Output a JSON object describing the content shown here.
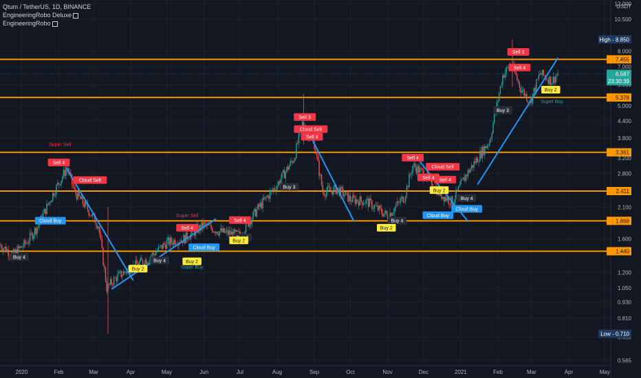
{
  "header": {
    "symbol_line": "Qtum / TetherUS, 1D, BINANCE",
    "indicator_1": "EngineeringRobo Deluxe",
    "indicator_2": "EngineeringRobo"
  },
  "chart_data": {
    "type": "candlestick",
    "symbol": "Qtum / TetherUS",
    "interval": "1D",
    "exchange": "BINANCE",
    "y_unit": "USDT",
    "y_scale": "log",
    "ylim": [
      0.54,
      12.4
    ],
    "x_range": [
      "2019-12-14",
      "2021-05-06"
    ],
    "x_ticks": [
      {
        "date": "2020-01-01",
        "label": "2020"
      },
      {
        "date": "2020-02-01",
        "label": "Feb"
      },
      {
        "date": "2020-03-01",
        "label": "Mar"
      },
      {
        "date": "2020-04-01",
        "label": "Apr"
      },
      {
        "date": "2020-05-01",
        "label": "May"
      },
      {
        "date": "2020-06-01",
        "label": "Jun"
      },
      {
        "date": "2020-07-01",
        "label": "Jul"
      },
      {
        "date": "2020-08-01",
        "label": "Aug"
      },
      {
        "date": "2020-09-01",
        "label": "Sep"
      },
      {
        "date": "2020-10-01",
        "label": "Oct"
      },
      {
        "date": "2020-11-01",
        "label": "Nov"
      },
      {
        "date": "2020-12-01",
        "label": "Dec"
      },
      {
        "date": "2021-01-01",
        "label": "2021"
      },
      {
        "date": "2021-02-01",
        "label": "Feb"
      },
      {
        "date": "2021-03-01",
        "label": "Mar"
      },
      {
        "date": "2021-04-01",
        "label": "Apr"
      },
      {
        "date": "2021-05-01",
        "label": "May"
      }
    ],
    "y_ticks": [
      "12.000",
      "10.500",
      "8.000",
      "7.000",
      "6.000",
      "5.000",
      "4.400",
      "3.800",
      "3.200",
      "2.800",
      "2.100",
      "1.600",
      "1.200",
      "1.050",
      "0.930",
      "0.810",
      "0.690",
      "0.565"
    ],
    "price_path": [
      [
        "2019-12-14",
        1.52
      ],
      [
        "2019-12-25",
        1.4
      ],
      [
        "2020-01-05",
        1.55
      ],
      [
        "2020-01-15",
        1.8
      ],
      [
        "2020-01-28",
        2.4
      ],
      [
        "2020-02-08",
        2.95
      ],
      [
        "2020-02-14",
        2.4
      ],
      [
        "2020-02-24",
        2.1
      ],
      [
        "2020-03-05",
        1.8
      ],
      [
        "2020-03-12",
        1.05
      ],
      [
        "2020-03-20",
        1.15
      ],
      [
        "2020-04-01",
        1.25
      ],
      [
        "2020-04-15",
        1.35
      ],
      [
        "2020-05-01",
        1.55
      ],
      [
        "2020-05-15",
        1.6
      ],
      [
        "2020-06-01",
        1.8
      ],
      [
        "2020-06-15",
        1.7
      ],
      [
        "2020-07-01",
        1.65
      ],
      [
        "2020-07-15",
        2.05
      ],
      [
        "2020-08-01",
        2.55
      ],
      [
        "2020-08-15",
        3.2
      ],
      [
        "2020-08-22",
        4.3
      ],
      [
        "2020-09-01",
        3.6
      ],
      [
        "2020-09-08",
        2.4
      ],
      [
        "2020-09-20",
        2.45
      ],
      [
        "2020-10-01",
        2.25
      ],
      [
        "2020-10-15",
        2.2
      ],
      [
        "2020-11-01",
        1.95
      ],
      [
        "2020-11-15",
        2.3
      ],
      [
        "2020-11-22",
        3.0
      ],
      [
        "2020-12-01",
        2.8
      ],
      [
        "2020-12-15",
        2.35
      ],
      [
        "2020-12-25",
        2.2
      ],
      [
        "2021-01-05",
        2.75
      ],
      [
        "2021-01-15",
        3.2
      ],
      [
        "2021-01-25",
        3.7
      ],
      [
        "2021-02-05",
        6.5
      ],
      [
        "2021-02-12",
        7.2
      ],
      [
        "2021-02-20",
        5.8
      ],
      [
        "2021-02-28",
        5.2
      ],
      [
        "2021-03-08",
        6.6
      ],
      [
        "2021-03-18",
        6.2
      ],
      [
        "2021-03-23",
        6.59
      ]
    ],
    "horizontal_levels": [
      7.455,
      5.378,
      3.361,
      2.411,
      1.868,
      1.44
    ],
    "trend_lines": [
      [
        [
          "2020-02-07",
          2.95
        ],
        [
          "2020-04-03",
          1.12
        ]
      ],
      [
        [
          "2020-03-16",
          1.04
        ],
        [
          "2020-06-11",
          1.9
        ]
      ],
      [
        [
          "2020-08-24",
          4.25
        ],
        [
          "2020-10-04",
          1.86
        ]
      ],
      [
        [
          "2020-11-28",
          3.1
        ],
        [
          "2021-01-07",
          1.86
        ]
      ],
      [
        [
          "2021-01-15",
          2.55
        ],
        [
          "2021-03-23",
          7.55
        ]
      ]
    ],
    "signals": [
      {
        "text": "Super Sell",
        "date": "2020-02-02",
        "price": 3.55,
        "kind": "text-sell"
      },
      {
        "text": "Sell 4",
        "date": "2020-02-01",
        "price": 3.08,
        "kind": "sell"
      },
      {
        "text": "Cloud Sell",
        "date": "2020-02-27",
        "price": 2.65,
        "kind": "sell"
      },
      {
        "text": "Cloud Buy",
        "date": "2020-01-25",
        "price": 1.87,
        "kind": "buy"
      },
      {
        "text": "Buy 4",
        "date": "2019-12-30",
        "price": 1.37,
        "kind": "buy-dark"
      },
      {
        "text": "Buy 2",
        "date": "2020-04-07",
        "price": 1.24,
        "kind": "buy-yellow"
      },
      {
        "text": "Buy 4",
        "date": "2020-04-25",
        "price": 1.33,
        "kind": "buy-dark"
      },
      {
        "text": "Super Sell",
        "date": "2020-05-18",
        "price": 1.93,
        "kind": "text-sell"
      },
      {
        "text": "Sell 4",
        "date": "2020-05-18",
        "price": 1.76,
        "kind": "sell"
      },
      {
        "text": "Cloud Buy",
        "date": "2020-06-01",
        "price": 1.49,
        "kind": "buy"
      },
      {
        "text": "Buy 2",
        "date": "2020-05-22",
        "price": 1.32,
        "kind": "buy-yellow"
      },
      {
        "text": "Super Buy",
        "date": "2020-05-22",
        "price": 1.24,
        "kind": "text-buy"
      },
      {
        "text": "Sell 4",
        "date": "2020-07-01",
        "price": 1.88,
        "kind": "sell"
      },
      {
        "text": "Buy 4",
        "date": "2020-07-03",
        "price": 1.62,
        "kind": "buy-dark"
      },
      {
        "text": "Buy 2",
        "date": "2020-06-30",
        "price": 1.58,
        "kind": "buy-yellow"
      },
      {
        "text": "Buy 3",
        "date": "2020-08-11",
        "price": 2.5,
        "kind": "buy-dark"
      },
      {
        "text": "Sell 3",
        "date": "2020-08-24",
        "price": 4.55,
        "kind": "sell"
      },
      {
        "text": "Cloud Sell",
        "date": "2020-08-29",
        "price": 4.1,
        "kind": "sell"
      },
      {
        "text": "Sell 4",
        "date": "2020-08-30",
        "price": 3.84,
        "kind": "sell"
      },
      {
        "text": "Buy 4",
        "date": "2020-11-09",
        "price": 1.87,
        "kind": "buy-dark"
      },
      {
        "text": "Buy 2",
        "date": "2020-10-31",
        "price": 1.76,
        "kind": "buy-yellow"
      },
      {
        "text": "Sell 4",
        "date": "2020-11-22",
        "price": 3.21,
        "kind": "sell"
      },
      {
        "text": "Sell 4",
        "date": "2020-12-05",
        "price": 2.71,
        "kind": "sell"
      },
      {
        "text": "Cloud Sell",
        "date": "2020-12-17",
        "price": 2.97,
        "kind": "sell"
      },
      {
        "text": "Sell 4",
        "date": "2020-12-19",
        "price": 2.66,
        "kind": "sell"
      },
      {
        "text": "Buy 2",
        "date": "2020-12-14",
        "price": 2.43,
        "kind": "buy-yellow"
      },
      {
        "text": "Buy 4",
        "date": "2021-01-06",
        "price": 2.27,
        "kind": "buy-dark"
      },
      {
        "text": "Cloud Buy",
        "date": "2021-01-06",
        "price": 2.07,
        "kind": "buy"
      },
      {
        "text": "Cloud Buy",
        "date": "2020-12-13",
        "price": 1.96,
        "kind": "buy"
      },
      {
        "text": "Buy 3",
        "date": "2021-02-05",
        "price": 4.82,
        "kind": "buy-dark"
      },
      {
        "text": "Sell 3",
        "date": "2021-02-18",
        "price": 7.95,
        "kind": "sell"
      },
      {
        "text": "Sell 4",
        "date": "2021-02-19",
        "price": 6.95,
        "kind": "sell"
      },
      {
        "text": "Buy 2",
        "date": "2021-03-17",
        "price": 5.75,
        "kind": "buy-yellow"
      },
      {
        "text": "Super Buy",
        "date": "2021-03-18",
        "price": 5.12,
        "kind": "text-buy"
      }
    ],
    "price_labels": [
      {
        "text": "High - 8.850",
        "price": 8.85,
        "kind": "high-low"
      },
      {
        "text": "7.455",
        "price": 7.455,
        "kind": "level"
      },
      {
        "text": "6.587",
        "price": 6.587,
        "kind": "current"
      },
      {
        "text": "23:30:39",
        "price": 6.18,
        "kind": "current-sub"
      },
      {
        "text": "5.378",
        "price": 5.378,
        "kind": "level"
      },
      {
        "text": "3.361",
        "price": 3.361,
        "kind": "level"
      },
      {
        "text": "2.411",
        "price": 2.411,
        "kind": "level"
      },
      {
        "text": "1.868",
        "price": 1.868,
        "kind": "level"
      },
      {
        "text": "1.440",
        "price": 1.44,
        "kind": "level"
      },
      {
        "text": "Low - 0.710",
        "price": 0.71,
        "kind": "high-low"
      }
    ],
    "colors": {
      "background": "#131722",
      "up": "#26a69a",
      "down": "#ef5350",
      "level": "#ff9800",
      "trend": "#2196f3",
      "sell": "#f23645",
      "buy": "#2196f3",
      "buy_yellow": "#ffeb3b",
      "buy_dark": "#2a2e39",
      "axis_text": "#b2b5be",
      "grid": "#1e222d"
    }
  }
}
